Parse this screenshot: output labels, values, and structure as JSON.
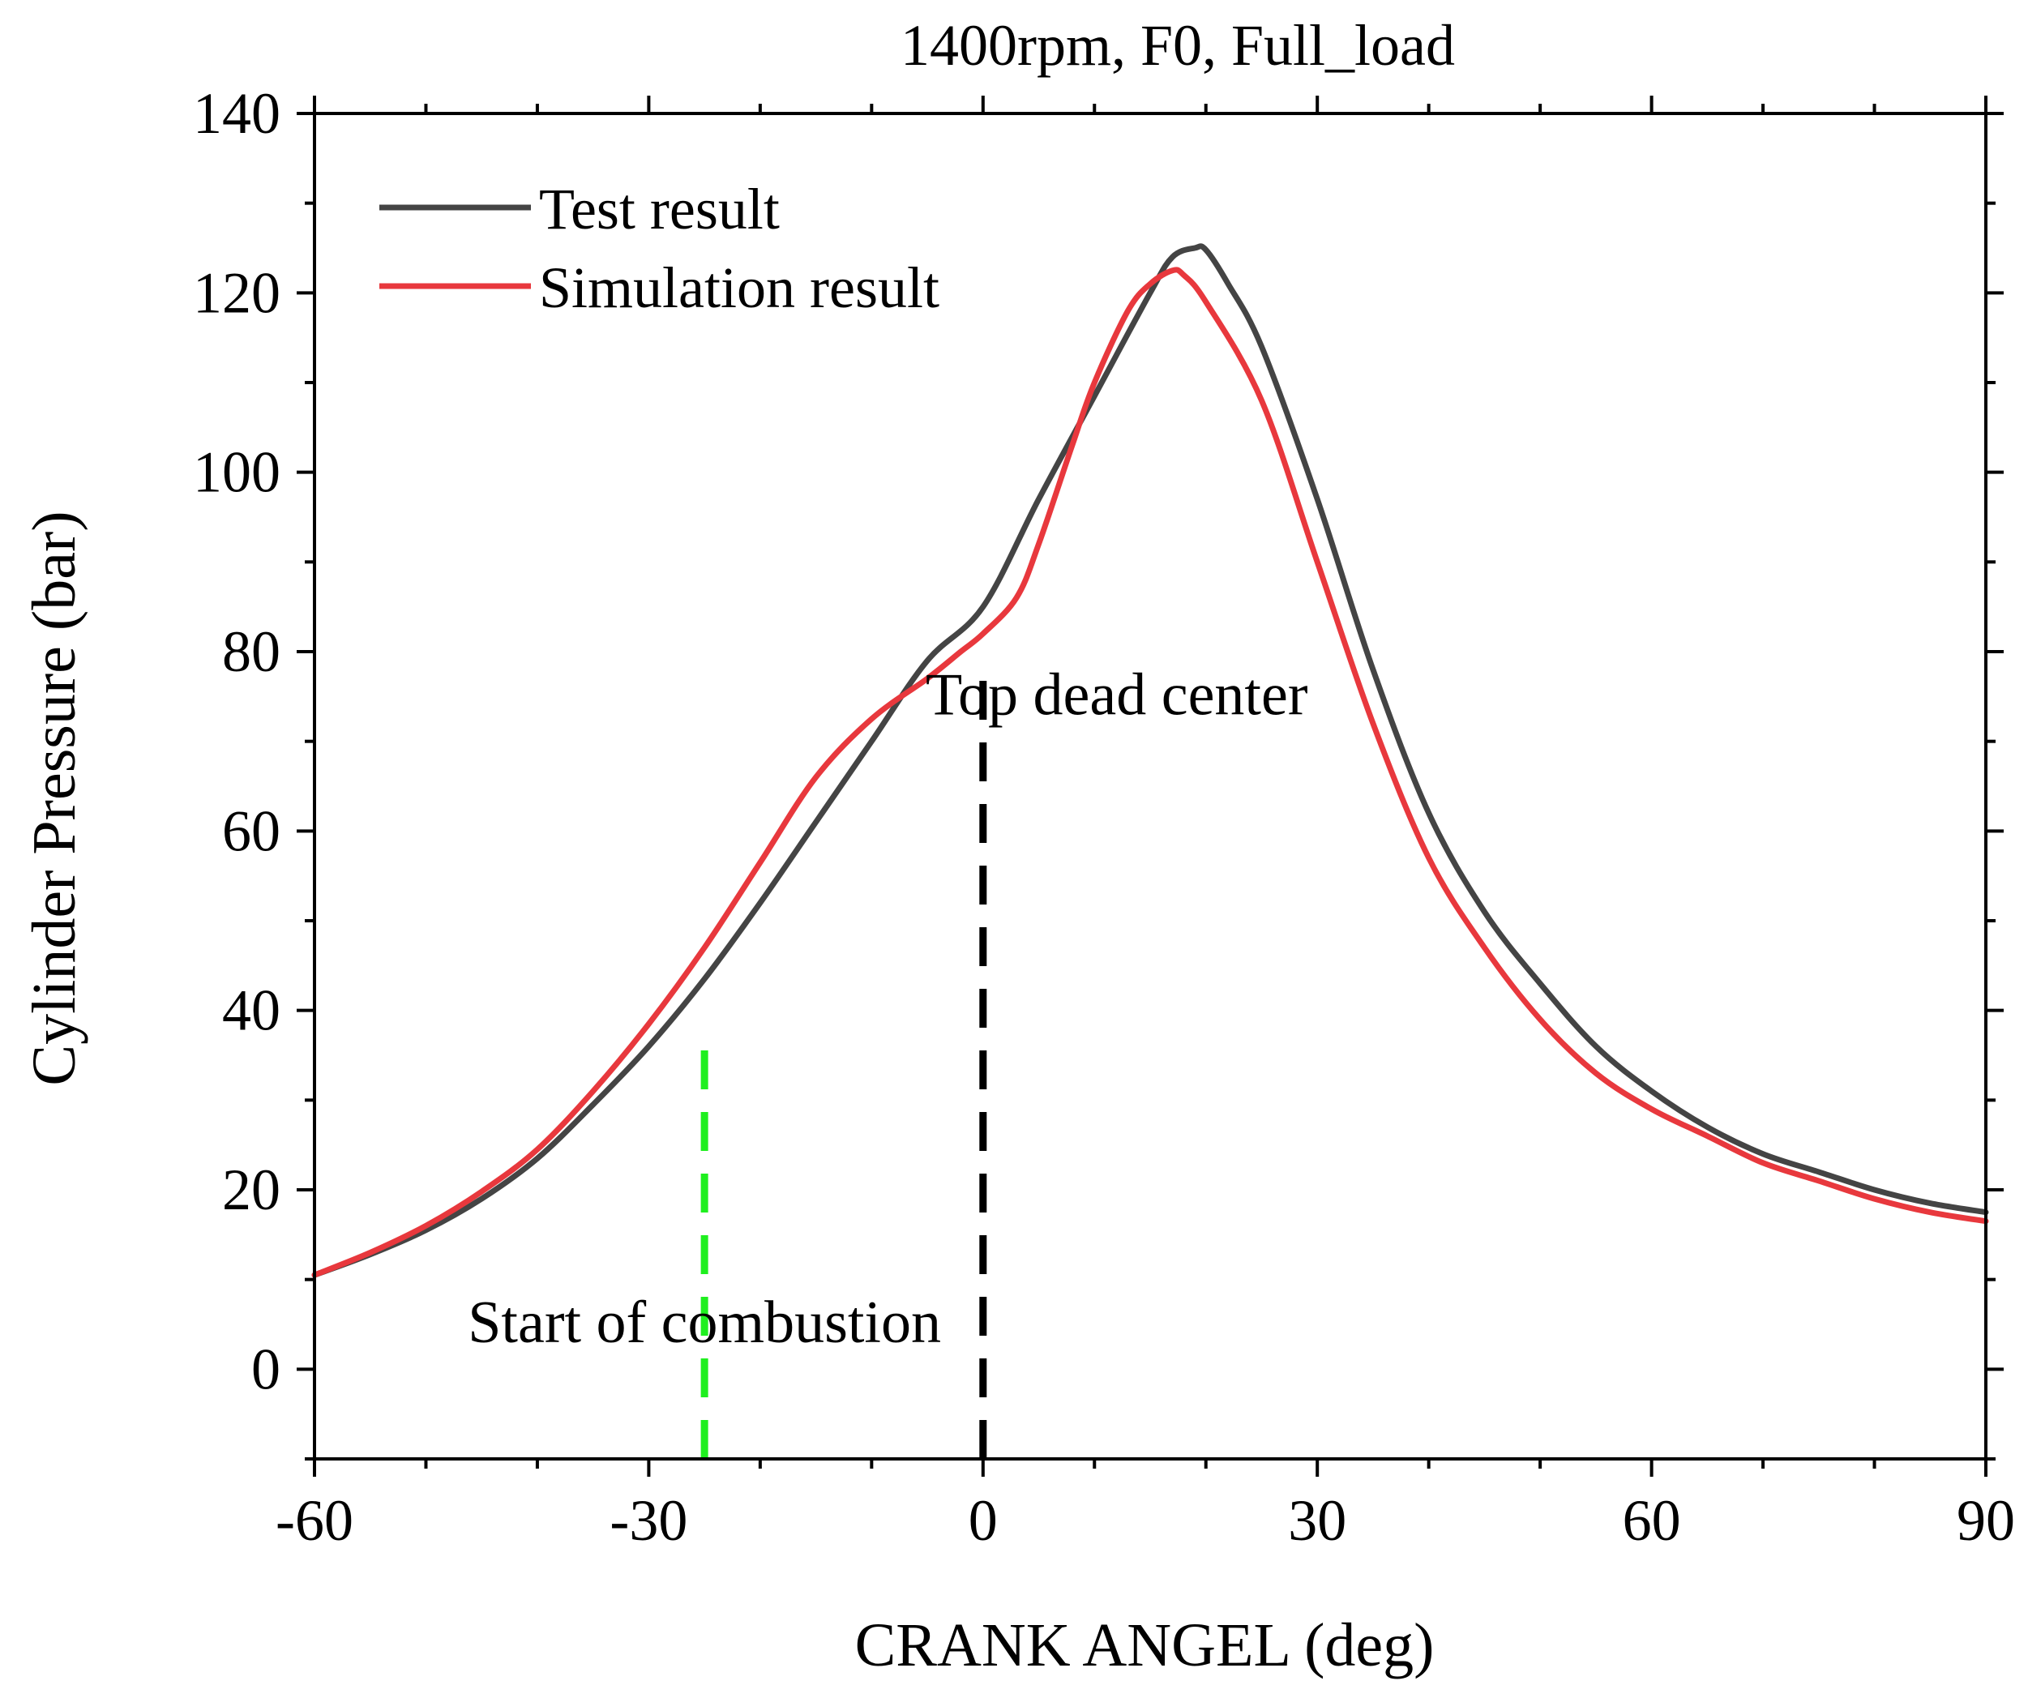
{
  "chart_data": {
    "type": "line",
    "title": "1400rpm, F0, Full_load",
    "xlabel": "CRANK ANGEL (deg)",
    "ylabel": "Cylinder Pressure (bar)",
    "xlim": [
      -60,
      90
    ],
    "ylim": [
      -10,
      140
    ],
    "xticks": [
      -60,
      -30,
      0,
      30,
      60,
      90
    ],
    "yticks": [
      0,
      20,
      40,
      60,
      80,
      100,
      120,
      140
    ],
    "xtick_labels": [
      "-60",
      "-30",
      "0",
      "30",
      "60",
      "90"
    ],
    "ytick_labels": [
      "0",
      "20",
      "40",
      "60",
      "80",
      "100",
      "120",
      "140"
    ],
    "grid": false,
    "legend_position": "top-left",
    "series": [
      {
        "name": "Test result",
        "color": "#444444",
        "x": [
          -60,
          -55,
          -50,
          -45,
          -40,
          -35,
          -30,
          -25,
          -20,
          -15,
          -10,
          -5,
          0,
          5,
          10,
          15,
          17,
          19,
          20,
          22,
          25,
          30,
          35,
          40,
          45,
          50,
          55,
          60,
          65,
          70,
          75,
          80,
          85,
          90
        ],
        "y": [
          10.5,
          12.8,
          15.5,
          19.0,
          23.5,
          29.5,
          36.0,
          43.5,
          52.0,
          61.0,
          70.0,
          79.0,
          85.0,
          97.0,
          108.5,
          120.0,
          124.0,
          125.0,
          124.8,
          121.0,
          114.0,
          97.0,
          78.0,
          62.0,
          51.0,
          43.0,
          36.0,
          31.0,
          27.0,
          24.0,
          22.0,
          20.0,
          18.5,
          17.5
        ]
      },
      {
        "name": "Simulation result",
        "color": "#e8383d",
        "x": [
          -60,
          -55,
          -50,
          -45,
          -40,
          -35,
          -30,
          -25,
          -20,
          -15,
          -10,
          -5,
          -2,
          0,
          3,
          5,
          8,
          10,
          13,
          15,
          17,
          18,
          20,
          25,
          30,
          35,
          40,
          45,
          50,
          55,
          60,
          65,
          70,
          75,
          80,
          85,
          90
        ],
        "y": [
          10.5,
          13.0,
          16.0,
          19.8,
          24.5,
          31.0,
          38.5,
          47.0,
          56.5,
          66.0,
          72.5,
          77.0,
          80.0,
          82.0,
          86.0,
          92.0,
          103.0,
          110.0,
          118.0,
          121.0,
          122.5,
          122.0,
          119.0,
          108.0,
          90.0,
          72.0,
          57.0,
          47.0,
          39.0,
          33.0,
          29.0,
          26.0,
          23.0,
          21.0,
          19.0,
          17.5,
          16.5
        ]
      }
    ],
    "vlines": [
      {
        "name": "Start of combustion",
        "x": -25,
        "y_top": 37,
        "color": "#1fef1f"
      },
      {
        "name": "Top dead center",
        "x": 0,
        "y_top": 78,
        "color": "#000000"
      }
    ],
    "annotations": [
      {
        "text": "Start of combustion",
        "x": -25,
        "y": 3
      },
      {
        "text": "Top dead center",
        "x": 12,
        "y": 73
      }
    ]
  }
}
